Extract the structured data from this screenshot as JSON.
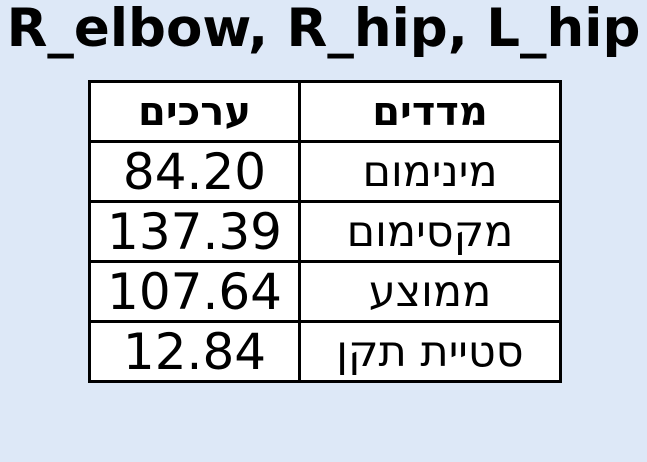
{
  "title": "R_elbow, R_hip, L_hip",
  "table": {
    "headers": {
      "values": "ערכים",
      "measures": "מדדים"
    },
    "rows": [
      {
        "value": "84.20",
        "measure": "מינימום"
      },
      {
        "value": "137.39",
        "measure": "מקסימום"
      },
      {
        "value": "107.64",
        "measure": "ממוצע"
      },
      {
        "value": "12.84",
        "measure": "סטיית תקן"
      }
    ]
  }
}
